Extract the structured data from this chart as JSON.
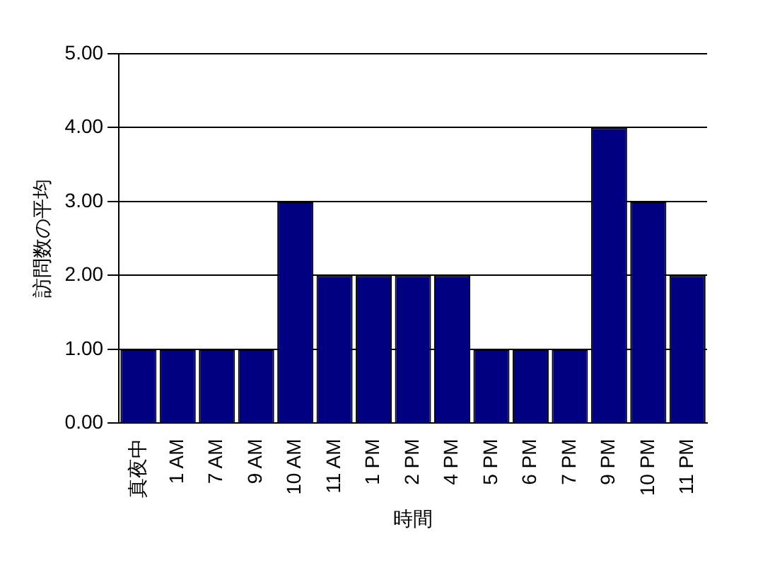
{
  "chart_data": {
    "type": "bar",
    "xlabel": "時間",
    "ylabel": "訪問数の平均",
    "categories": [
      "真夜中",
      "1 AM",
      "7 AM",
      "9 AM",
      "10 AM",
      "11 AM",
      "1 PM",
      "2 PM",
      "4 PM",
      "5 PM",
      "6 PM",
      "7 PM",
      "9 PM",
      "10 PM",
      "11 PM"
    ],
    "values": [
      1,
      1,
      1,
      1,
      3,
      2,
      2,
      2,
      2,
      1,
      1,
      1,
      4,
      3,
      2
    ],
    "color": "#000080",
    "ylim": [
      0,
      5
    ],
    "yticks": [
      {
        "value": 0,
        "label": "0.00"
      },
      {
        "value": 1,
        "label": "1.00"
      },
      {
        "value": 2,
        "label": "2.00"
      },
      {
        "value": 3,
        "label": "3.00"
      },
      {
        "value": 4,
        "label": "4.00"
      },
      {
        "value": 5,
        "label": "5.00"
      }
    ],
    "grid": "y"
  }
}
